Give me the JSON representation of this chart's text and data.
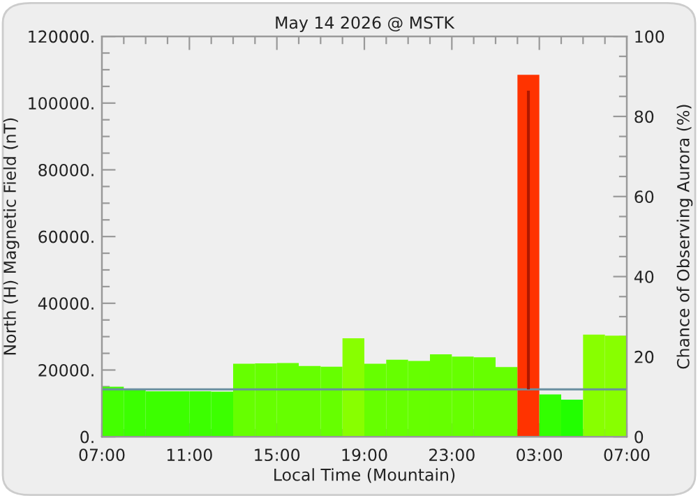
{
  "chart_data": {
    "type": "bar",
    "title": "May 14 2026 @ MSTK",
    "xlabel": "Local Time (Mountain)",
    "ylabel": "North (H) Magnetic Field (nT)",
    "y2label": "Chance of Observing Aurora (%)",
    "x": [
      "2026-05-14T07:30",
      "2026-05-14T08:30",
      "2026-05-14T09:30",
      "2026-05-14T10:30",
      "2026-05-14T11:30",
      "2026-05-14T12:30",
      "2026-05-14T13:30",
      "2026-05-14T14:30",
      "2026-05-14T15:30",
      "2026-05-14T16:30",
      "2026-05-14T17:30",
      "2026-05-14T18:30",
      "2026-05-14T19:30",
      "2026-05-14T20:30",
      "2026-05-14T21:30",
      "2026-05-14T22:30",
      "2026-05-14T23:30",
      "2026-05-15T00:30",
      "2026-05-15T01:30",
      "2026-05-15T02:30",
      "2026-05-15T03:30",
      "2026-05-15T04:30",
      "2026-05-15T05:30",
      "2026-05-15T06:30"
    ],
    "series": [
      {
        "values": [
          15000,
          14200,
          13600,
          13600,
          13600,
          13500,
          21900,
          22000,
          22100,
          21200,
          21000,
          29500,
          21900,
          23100,
          22700,
          24700,
          24000,
          23800,
          20900,
          108500,
          12700,
          11100,
          30600,
          30300
        ],
        "colors": [
          "#44ff00",
          "#3cff00",
          "#3cff00",
          "#3cff00",
          "#3cff00",
          "#3cff00",
          "#66ff00",
          "#66ff00",
          "#66ff00",
          "#66ff00",
          "#66ff00",
          "#88ff00",
          "#66ff00",
          "#66ff00",
          "#66ff00",
          "#66ff00",
          "#66ff00",
          "#66ff00",
          "#66ff00",
          "#ff3300",
          "#33ff00",
          "#22ff00",
          "#88ff00",
          "#88ff00"
        ],
        "errors": [
          null,
          null,
          null,
          null,
          null,
          null,
          null,
          null,
          null,
          null,
          null,
          null,
          null,
          null,
          null,
          null,
          null,
          null,
          null,
          [
            14200,
            103700
          ],
          null,
          null,
          null,
          null
        ]
      }
    ],
    "xlim": [
      "2026-05-14T07:00",
      "2026-05-15T07:00"
    ],
    "xticks": [
      {
        "value": "2026-05-14T07:00",
        "label": "07:00"
      },
      {
        "value": "2026-05-14T08:00",
        "label": null
      },
      {
        "value": "2026-05-14T09:00",
        "label": null
      },
      {
        "value": "2026-05-14T10:00",
        "label": null
      },
      {
        "value": "2026-05-14T11:00",
        "label": "11:00"
      },
      {
        "value": "2026-05-14T12:00",
        "label": null
      },
      {
        "value": "2026-05-14T13:00",
        "label": null
      },
      {
        "value": "2026-05-14T14:00",
        "label": null
      },
      {
        "value": "2026-05-14T15:00",
        "label": "15:00"
      },
      {
        "value": "2026-05-14T16:00",
        "label": null
      },
      {
        "value": "2026-05-14T17:00",
        "label": null
      },
      {
        "value": "2026-05-14T18:00",
        "label": null
      },
      {
        "value": "2026-05-14T19:00",
        "label": "19:00"
      },
      {
        "value": "2026-05-14T20:00",
        "label": null
      },
      {
        "value": "2026-05-14T21:00",
        "label": null
      },
      {
        "value": "2026-05-14T22:00",
        "label": null
      },
      {
        "value": "2026-05-14T23:00",
        "label": "23:00"
      },
      {
        "value": "2026-05-15T00:00",
        "label": null
      },
      {
        "value": "2026-05-15T01:00",
        "label": null
      },
      {
        "value": "2026-05-15T02:00",
        "label": null
      },
      {
        "value": "2026-05-15T03:00",
        "label": "03:00"
      },
      {
        "value": "2026-05-15T04:00",
        "label": null
      },
      {
        "value": "2026-05-15T05:00",
        "label": null
      },
      {
        "value": "2026-05-15T06:00",
        "label": null
      },
      {
        "value": "2026-05-15T07:00",
        "label": "07:00"
      }
    ],
    "ylim": [
      0,
      120000
    ],
    "yticks": [
      {
        "value": 0,
        "label": "0."
      },
      {
        "value": 5000,
        "label": null
      },
      {
        "value": 10000,
        "label": null
      },
      {
        "value": 15000,
        "label": null
      },
      {
        "value": 20000,
        "label": "20000."
      },
      {
        "value": 25000,
        "label": null
      },
      {
        "value": 30000,
        "label": null
      },
      {
        "value": 35000,
        "label": null
      },
      {
        "value": 40000,
        "label": "40000."
      },
      {
        "value": 45000,
        "label": null
      },
      {
        "value": 50000,
        "label": null
      },
      {
        "value": 55000,
        "label": null
      },
      {
        "value": 60000,
        "label": "60000."
      },
      {
        "value": 65000,
        "label": null
      },
      {
        "value": 70000,
        "label": null
      },
      {
        "value": 75000,
        "label": null
      },
      {
        "value": 80000,
        "label": "80000."
      },
      {
        "value": 85000,
        "label": null
      },
      {
        "value": 90000,
        "label": null
      },
      {
        "value": 95000,
        "label": null
      },
      {
        "value": 100000,
        "label": "100000."
      },
      {
        "value": 105000,
        "label": null
      },
      {
        "value": 110000,
        "label": null
      },
      {
        "value": 115000,
        "label": null
      },
      {
        "value": 120000,
        "label": "120000."
      }
    ],
    "y2lim": [
      0,
      100
    ],
    "y2ticks": [
      0,
      {
        "value": 5,
        "label": null
      },
      {
        "value": 10,
        "label": null
      },
      {
        "value": 15,
        "label": null
      },
      20,
      {
        "value": 25,
        "label": null
      },
      {
        "value": 30,
        "label": null
      },
      {
        "value": 35,
        "label": null
      },
      40,
      {
        "value": 45,
        "label": null
      },
      {
        "value": 50,
        "label": null
      },
      {
        "value": 55,
        "label": null
      },
      60,
      {
        "value": 65,
        "label": null
      },
      {
        "value": 70,
        "label": null
      },
      {
        "value": 75,
        "label": null
      },
      80,
      {
        "value": 85,
        "label": null
      },
      {
        "value": 90,
        "label": null
      },
      {
        "value": 95,
        "label": null
      },
      100
    ],
    "ref_lines": [
      {
        "axis": "y",
        "value": 14200,
        "color": "#6a8fa0"
      }
    ],
    "grid": false,
    "legend": false
  }
}
